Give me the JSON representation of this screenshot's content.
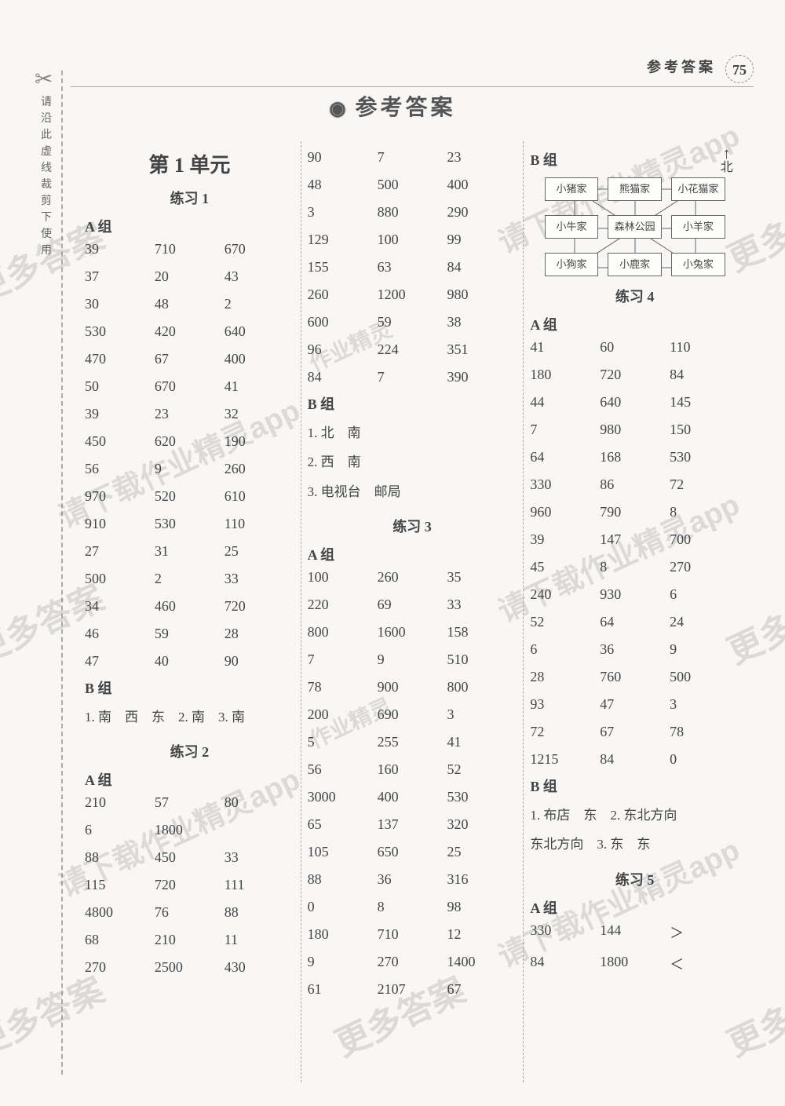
{
  "header": {
    "label": "参考答案",
    "page_number": "75"
  },
  "main_title": "参考答案",
  "left_margin": "请沿此虚线裁剪下使用",
  "watermarks": {
    "text_main": "更多答案，请下载作业精灵app",
    "text_short": "更多答案",
    "text_mid": "请下载作业精灵app",
    "text_homework": "作业精灵"
  },
  "unit1": {
    "title": "第 1 单元"
  },
  "practice1": {
    "title": "练习 1",
    "groupA_label": "A 组",
    "groupA": [
      [
        "39",
        "710",
        "670"
      ],
      [
        "37",
        "20",
        "43"
      ],
      [
        "30",
        "48",
        "2"
      ],
      [
        "530",
        "420",
        "640"
      ],
      [
        "470",
        "67",
        "400"
      ],
      [
        "50",
        "670",
        "41"
      ],
      [
        "39",
        "23",
        "32"
      ],
      [
        "450",
        "620",
        "190"
      ],
      [
        "56",
        "9",
        "260"
      ],
      [
        "970",
        "520",
        "610"
      ],
      [
        "910",
        "530",
        "110"
      ],
      [
        "27",
        "31",
        "25"
      ],
      [
        "500",
        "2",
        "33"
      ],
      [
        "34",
        "460",
        "720"
      ],
      [
        "46",
        "59",
        "28"
      ],
      [
        "47",
        "40",
        "90"
      ]
    ],
    "groupB_label": "B 组",
    "groupB_text": "1. 南　西　东　2. 南　3. 南"
  },
  "practice2": {
    "title": "练习 2",
    "groupA_label": "A 组",
    "groupA_col1": [
      [
        "210",
        "57",
        "80"
      ],
      [
        "6",
        "1800",
        ""
      ],
      [
        "88",
        "450",
        "33"
      ],
      [
        "115",
        "720",
        "111"
      ],
      [
        "4800",
        "76",
        "88"
      ],
      [
        "68",
        "210",
        "11"
      ],
      [
        "270",
        "2500",
        "430"
      ]
    ],
    "groupA_col2": [
      [
        "90",
        "7",
        "23"
      ],
      [
        "48",
        "500",
        "400"
      ],
      [
        "3",
        "880",
        "290"
      ],
      [
        "129",
        "100",
        "99"
      ],
      [
        "155",
        "63",
        "84"
      ],
      [
        "260",
        "1200",
        "980"
      ],
      [
        "600",
        "59",
        "38"
      ],
      [
        "96",
        "224",
        "351"
      ],
      [
        "84",
        "7",
        "390"
      ]
    ],
    "groupB_label": "B 组",
    "groupB_lines": [
      "1. 北　南",
      "2. 西　南",
      "3. 电视台　邮局"
    ]
  },
  "practice3": {
    "title": "练习 3",
    "groupA_label": "A 组",
    "groupA": [
      [
        "100",
        "260",
        "35"
      ],
      [
        "220",
        "69",
        "33"
      ],
      [
        "800",
        "1600",
        "158"
      ],
      [
        "7",
        "9",
        "510"
      ],
      [
        "78",
        "900",
        "800"
      ],
      [
        "200",
        "690",
        "3"
      ],
      [
        "5",
        "255",
        "41"
      ],
      [
        "56",
        "160",
        "52"
      ],
      [
        "3000",
        "400",
        "530"
      ],
      [
        "65",
        "137",
        "320"
      ],
      [
        "105",
        "650",
        "25"
      ],
      [
        "88",
        "36",
        "316"
      ],
      [
        "0",
        "8",
        "98"
      ],
      [
        "180",
        "710",
        "12"
      ],
      [
        "9",
        "270",
        "1400"
      ],
      [
        "61",
        "2107",
        "67"
      ]
    ],
    "groupB_label": "B 组"
  },
  "diagram": {
    "north": "北",
    "boxes": [
      "小猪家",
      "熊猫家",
      "小花猫家",
      "小牛家",
      "森林公园",
      "小羊家",
      "小狗家",
      "小鹿家",
      "小兔家"
    ]
  },
  "practice4": {
    "title": "练习 4",
    "groupA_label": "A 组",
    "groupA": [
      [
        "41",
        "60",
        "110"
      ],
      [
        "180",
        "720",
        "84"
      ],
      [
        "44",
        "640",
        "145"
      ],
      [
        "7",
        "980",
        "150"
      ],
      [
        "64",
        "168",
        "530"
      ],
      [
        "330",
        "86",
        "72"
      ],
      [
        "960",
        "790",
        "8"
      ],
      [
        "39",
        "147",
        "700"
      ],
      [
        "45",
        "8",
        "270"
      ],
      [
        "240",
        "930",
        "6"
      ],
      [
        "52",
        "64",
        "24"
      ],
      [
        "6",
        "36",
        "9"
      ],
      [
        "28",
        "760",
        "500"
      ],
      [
        "93",
        "47",
        "3"
      ],
      [
        "72",
        "67",
        "78"
      ],
      [
        "1215",
        "84",
        "0"
      ]
    ],
    "groupB_label": "B 组",
    "groupB_lines": [
      "1. 布店　东　2. 东北方向",
      "东北方向　3. 东　东"
    ]
  },
  "practice5": {
    "title": "练习 5",
    "groupA_label": "A 组",
    "groupA": [
      [
        "330",
        "144",
        "＞"
      ],
      [
        "84",
        "1800",
        "＜"
      ]
    ]
  }
}
